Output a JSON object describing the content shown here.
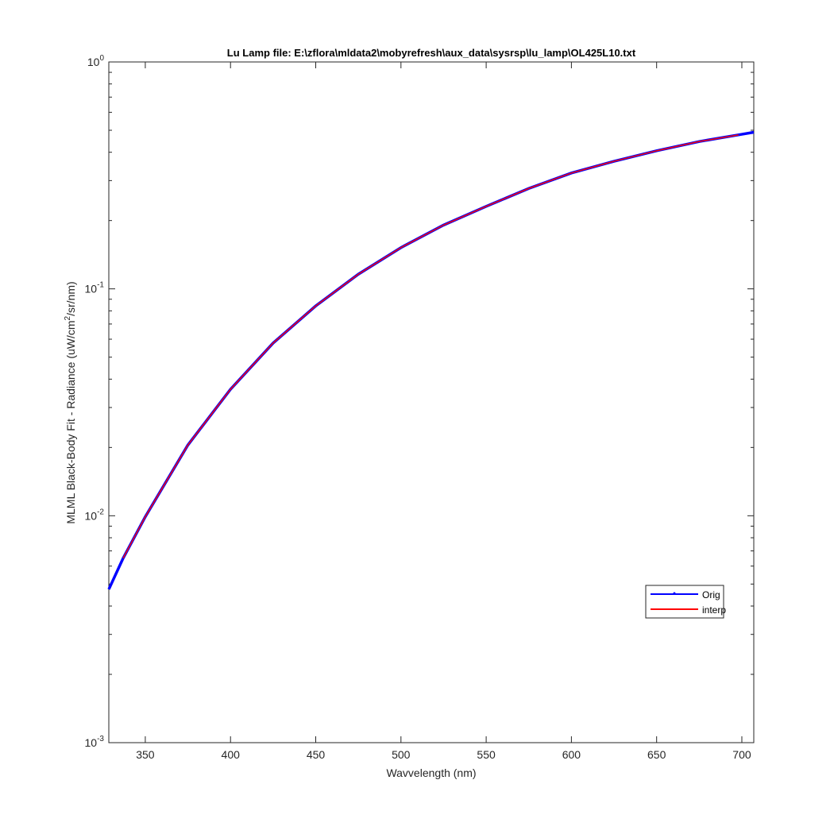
{
  "chart_data": {
    "type": "line",
    "title": "Lu Lamp file: E:\\zflora\\mldata2\\mobyrefresh\\aux_data\\sysrsp\\lu_lamp\\OL425L10.txt",
    "xlabel": "Wavvelength (nm)",
    "ylabel": {
      "text": "MLML Black-Body Fit - Radiance (uW/cm",
      "sup": "2",
      "after": "/sr/nm)"
    },
    "xlim": [
      328.6,
      707
    ],
    "xticks": [
      350,
      400,
      450,
      500,
      550,
      600,
      650,
      700
    ],
    "ylim": [
      0.001,
      1
    ],
    "log_y": true,
    "yticks": [
      {
        "value": 0.001,
        "label": "10",
        "sup": "-3"
      },
      {
        "value": 0.01,
        "label": "10",
        "sup": "-2"
      },
      {
        "value": 0.1,
        "label": "10",
        "sup": "-1"
      },
      {
        "value": 1,
        "label": "10",
        "sup": "0"
      }
    ],
    "legend_loc": "lower right",
    "series": [
      {
        "name": "Orig",
        "color": "#0000ff",
        "x": [
          328.6,
          337,
          350,
          375,
          400,
          425,
          450,
          475,
          500,
          525,
          550,
          575,
          600,
          625,
          650,
          675,
          700,
          707
        ],
        "values": [
          0.00474,
          0.0065,
          0.0099,
          0.0205,
          0.0361,
          0.0577,
          0.0841,
          0.116,
          0.152,
          0.191,
          0.231,
          0.277,
          0.324,
          0.365,
          0.406,
          0.446,
          0.48,
          0.49
        ]
      },
      {
        "name": "interp",
        "color": "#ff0000",
        "x": [
          337,
          350,
          375,
          400,
          425,
          450,
          475,
          500,
          525,
          550,
          575,
          600,
          625,
          650,
          675,
          698
        ],
        "values": [
          0.0065,
          0.0099,
          0.0205,
          0.0361,
          0.0577,
          0.0841,
          0.116,
          0.152,
          0.191,
          0.231,
          0.277,
          0.324,
          0.365,
          0.406,
          0.446,
          0.477
        ]
      }
    ]
  }
}
